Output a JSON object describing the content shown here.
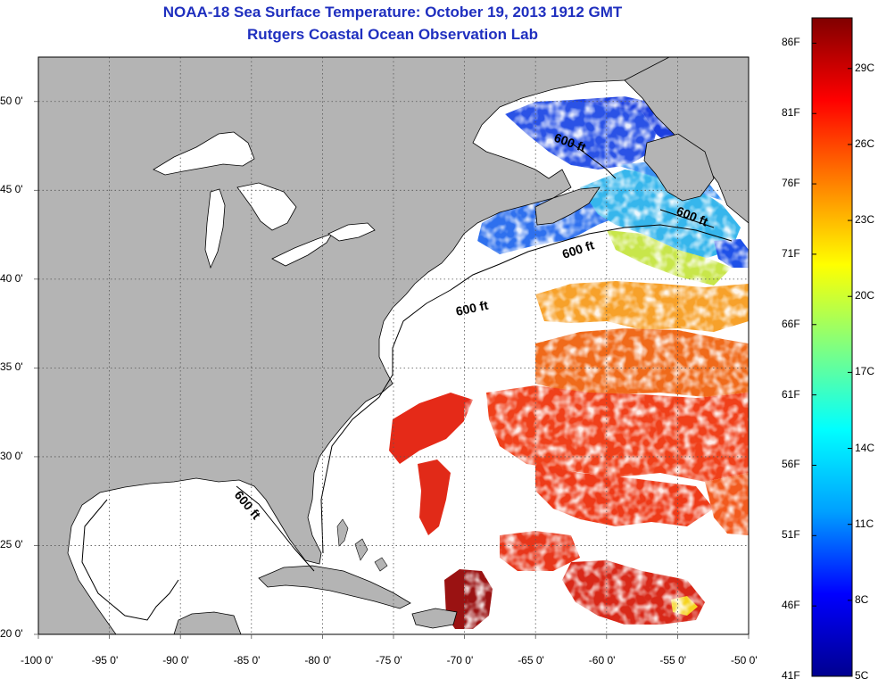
{
  "title": "NOAA-18 Sea Surface Temperature:  October 19, 2013 1912 GMT",
  "subtitle": "Rutgers Coastal Ocean Observation Lab",
  "map": {
    "lon_range": [
      -100,
      -50
    ],
    "lat_range": [
      20,
      52.5
    ],
    "lon_ticks": [
      "-100 0'",
      "-95 0'",
      "-90 0'",
      "-85 0'",
      "-80 0'",
      "-75 0'",
      "-70 0'",
      "-65 0'",
      "-60 0'",
      "-55 0'",
      "-50 0'"
    ],
    "lat_ticks": [
      "20 0'",
      "25 0'",
      "30 0'",
      "35 0'",
      "40 0'",
      "45 0'",
      "50 0'"
    ],
    "grid": "dotted",
    "contour_label": "600 ft",
    "colors": {
      "land": "#b4b4b4",
      "ocean": "#ffffff",
      "coast": "#000000"
    }
  },
  "colorbar": {
    "fahrenheit_labels": [
      "86F",
      "81F",
      "76F",
      "71F",
      "66F",
      "61F",
      "56F",
      "51F",
      "46F",
      "41F"
    ],
    "celsius_labels": [
      "29C",
      "26C",
      "23C",
      "20C",
      "17C",
      "14C",
      "11C",
      "8C",
      "5C"
    ],
    "range_c": [
      5,
      31
    ],
    "colormap": [
      "#00008f",
      "#0000ff",
      "#00a0ff",
      "#00ffff",
      "#80ff80",
      "#ffff00",
      "#ff8000",
      "#ff0000",
      "#800000"
    ]
  }
}
